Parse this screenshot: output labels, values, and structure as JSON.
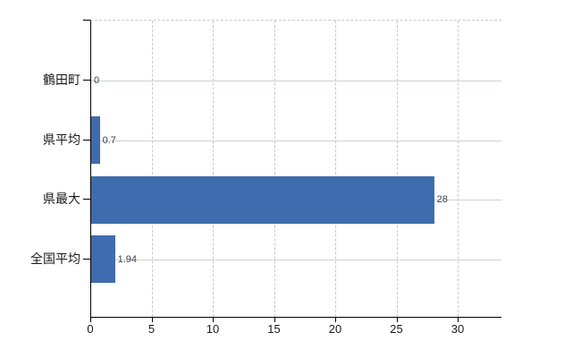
{
  "chart_data": {
    "type": "bar",
    "orientation": "horizontal",
    "title": "",
    "xlabel": "",
    "ylabel": "",
    "categories": [
      "鶴田町",
      "県平均",
      "県最大",
      "全国平均"
    ],
    "values": [
      0,
      0.7,
      28,
      1.94
    ],
    "value_labels": [
      "0",
      "0.7",
      "28",
      "1.94"
    ],
    "xticks": [
      0,
      5,
      10,
      15,
      20,
      25,
      30
    ],
    "xtick_labels": [
      "0",
      "5",
      "10",
      "15",
      "20",
      "25",
      "30"
    ],
    "xlim": [
      0,
      33.5
    ],
    "grid": true,
    "legend": false,
    "colors": {
      "bar": "#3e6cae",
      "axis": "#000000",
      "vertical_grid": "#c9c9c9",
      "horizontal_grid": "#ccd4cc",
      "value_label_text": "#39414f",
      "category_label_text": "#1a1a1a",
      "tick_label_text": "#1a1a1a",
      "background": "#ffffff"
    }
  }
}
